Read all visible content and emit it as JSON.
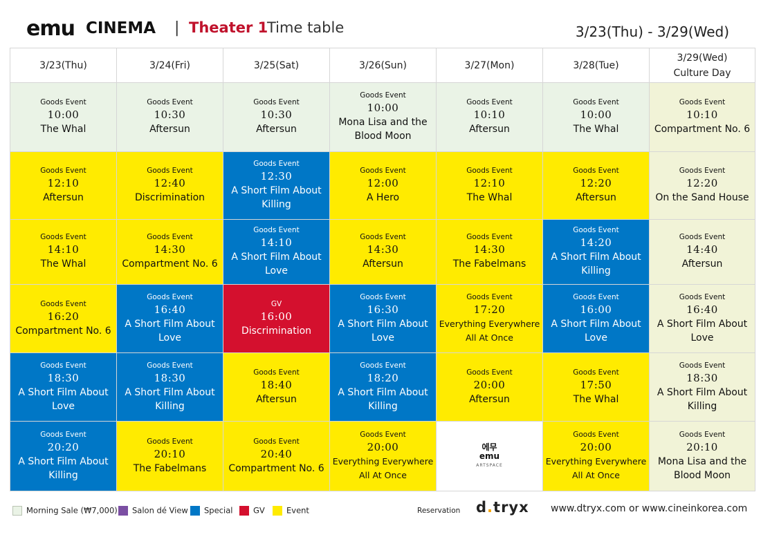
{
  "header": {
    "logo_emu": "emu",
    "logo_cinema": "CINEMA",
    "separator": "|",
    "theater": "Theater 1",
    "subtitle": "Time table",
    "date_range": "3/23(Thu) - 3/29(Wed)"
  },
  "days": [
    {
      "label": "3/23(Thu)",
      "note": ""
    },
    {
      "label": "3/24(Fri)",
      "note": ""
    },
    {
      "label": "3/25(Sat)",
      "note": ""
    },
    {
      "label": "3/26(Sun)",
      "note": ""
    },
    {
      "label": "3/27(Mon)",
      "note": ""
    },
    {
      "label": "3/28(Tue)",
      "note": ""
    },
    {
      "label": "3/29(Wed)",
      "note": "Culture Day"
    }
  ],
  "rows": [
    [
      {
        "type": "morning",
        "tag": "Goods Event",
        "time": "10:00",
        "title": "The Whal"
      },
      {
        "type": "morning",
        "tag": "Goods Event",
        "time": "10:30",
        "title": "Aftersun"
      },
      {
        "type": "morning",
        "tag": "Goods Event",
        "time": "10:30",
        "title": "Aftersun"
      },
      {
        "type": "morning",
        "tag": "Goods Event",
        "time": "10:00",
        "title": "Mona Lisa and the Blood Moon"
      },
      {
        "type": "morning",
        "tag": "Goods Event",
        "time": "10:10",
        "title": "Aftersun"
      },
      {
        "type": "morning",
        "tag": "Goods Event",
        "time": "10:00",
        "title": "The Whal"
      },
      {
        "type": "culture",
        "tag": "Goods Event",
        "time": "10:10",
        "title": "Compartment No. 6"
      }
    ],
    [
      {
        "type": "event",
        "tag": "Goods Event",
        "time": "12:10",
        "title": "Aftersun"
      },
      {
        "type": "event",
        "tag": "Goods Event",
        "time": "12:40",
        "title": "Discrimination"
      },
      {
        "type": "special",
        "tag": "Goods Event",
        "time": "12:30",
        "title": "A Short Film About Killing"
      },
      {
        "type": "event",
        "tag": "Goods Event",
        "time": "12:00",
        "title": "A Hero"
      },
      {
        "type": "event",
        "tag": "Goods Event",
        "time": "12:10",
        "title": "The Whal"
      },
      {
        "type": "event",
        "tag": "Goods Event",
        "time": "12:20",
        "title": "Aftersun"
      },
      {
        "type": "culture",
        "tag": "Goods Event",
        "time": "12:20",
        "title": "On the Sand House"
      }
    ],
    [
      {
        "type": "event",
        "tag": "Goods Event",
        "time": "14:10",
        "title": "The Whal"
      },
      {
        "type": "event",
        "tag": "Goods Event",
        "time": "14:30",
        "title": "Compartment No. 6"
      },
      {
        "type": "special",
        "tag": "Goods Event",
        "time": "14:10",
        "title": "A Short Film About Love"
      },
      {
        "type": "event",
        "tag": "Goods Event",
        "time": "14:30",
        "title": "Aftersun"
      },
      {
        "type": "event",
        "tag": "Goods Event",
        "time": "14:30",
        "title": "The Fabelmans"
      },
      {
        "type": "special",
        "tag": "Goods Event",
        "time": "14:20",
        "title": "A Short Film About Killing"
      },
      {
        "type": "culture",
        "tag": "Goods Event",
        "time": "14:40",
        "title": "Aftersun"
      }
    ],
    [
      {
        "type": "event",
        "tag": "Goods Event",
        "time": "16:20",
        "title": "Compartment No. 6"
      },
      {
        "type": "special",
        "tag": "Goods Event",
        "time": "16:40",
        "title": "A Short Film About Love"
      },
      {
        "type": "gv",
        "tag": "GV",
        "time": "16:00",
        "title": "Discrimination"
      },
      {
        "type": "special",
        "tag": "Goods Event",
        "time": "16:30",
        "title": "A Short Film About Love"
      },
      {
        "type": "event",
        "tag": "Goods Event",
        "time": "17:20",
        "title": "Everything Everywhere All At Once",
        "small": true
      },
      {
        "type": "special",
        "tag": "Goods Event",
        "time": "16:00",
        "title": "A Short Film About Love"
      },
      {
        "type": "culture",
        "tag": "Goods Event",
        "time": "16:40",
        "title": "A Short Film About Love"
      }
    ],
    [
      {
        "type": "special",
        "tag": "Goods Event",
        "time": "18:30",
        "title": "A Short Film About Love"
      },
      {
        "type": "special",
        "tag": "Goods Event",
        "time": "18:30",
        "title": "A Short Film About Killing"
      },
      {
        "type": "event",
        "tag": "Goods Event",
        "time": "18:40",
        "title": "Aftersun"
      },
      {
        "type": "special",
        "tag": "Goods Event",
        "time": "18:20",
        "title": "A Short Film About Killing"
      },
      {
        "type": "event",
        "tag": "Goods Event",
        "time": "20:00",
        "title": "Aftersun"
      },
      {
        "type": "event",
        "tag": "Goods Event",
        "time": "17:50",
        "title": "The Whal"
      },
      {
        "type": "culture",
        "tag": "Goods Event",
        "time": "18:30",
        "title": "A Short Film About Killing"
      }
    ],
    [
      {
        "type": "special",
        "tag": "Goods Event",
        "time": "20:20",
        "title": "A Short Film About Killing"
      },
      {
        "type": "event",
        "tag": "Goods Event",
        "time": "20:10",
        "title": "The Fabelmans"
      },
      {
        "type": "event",
        "tag": "Goods Event",
        "time": "20:40",
        "title": "Compartment No. 6"
      },
      {
        "type": "event",
        "tag": "Goods Event",
        "time": "20:00",
        "title": "Everything Everywhere All At Once",
        "small": true
      },
      {
        "type": "empty",
        "logo_top": "에무",
        "logo_mid": "emu",
        "logo_sub": "ARTSPACE"
      },
      {
        "type": "event",
        "tag": "Goods Event",
        "time": "20:00",
        "title": "Everything Everywhere All At Once",
        "small": true
      },
      {
        "type": "culture",
        "tag": "Goods Event",
        "time": "20:10",
        "title": "Mona Lisa and the Blood Moon"
      }
    ]
  ],
  "legend": [
    {
      "label": "Morning Sale (₩7,000)",
      "color": "#eaf3e6",
      "border": "#b9c4b3"
    },
    {
      "label": "Salon dé View",
      "color": "#7b4fa3",
      "border": "#7b4fa3"
    },
    {
      "label": "Special",
      "color": "#0077c6",
      "border": "#0077c6"
    },
    {
      "label": "GV",
      "color": "#d4102e",
      "border": "#d4102e"
    },
    {
      "label": "Event",
      "color": "#ffeb00",
      "border": "#ffeb00"
    }
  ],
  "footer": {
    "reservation_label": "Reservation",
    "brand_left": "d",
    "brand_dot": ".",
    "brand_right": "tryx",
    "urls": "www.dtryx.com  or www.cineinkorea.com"
  },
  "colors": {
    "theater_red": "#c0122c",
    "special_blue": "#0077c6",
    "event_yellow": "#ffeb00",
    "gv_red": "#d4102e",
    "morning_green": "#eaf3e6",
    "culture_day": "#f1f3d7"
  }
}
